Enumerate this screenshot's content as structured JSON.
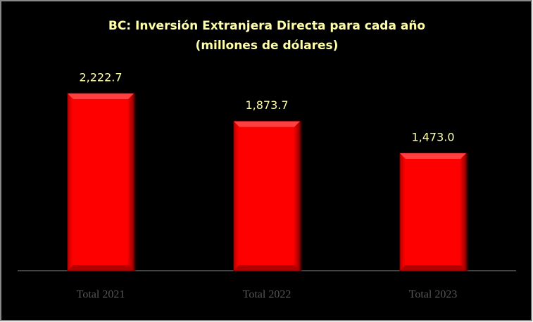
{
  "chart_data": {
    "type": "bar",
    "title": "BC: Inversión Extranjera Directa para cada año",
    "subtitle": "(millones de dólares)",
    "categories": [
      "Total 2021",
      "Total 2022",
      "Total 2023"
    ],
    "values": [
      2222.7,
      1873.7,
      1473.0
    ],
    "value_labels": [
      "2,222.7",
      "1,873.7",
      "1,473.0"
    ],
    "color": "#ff0000"
  }
}
